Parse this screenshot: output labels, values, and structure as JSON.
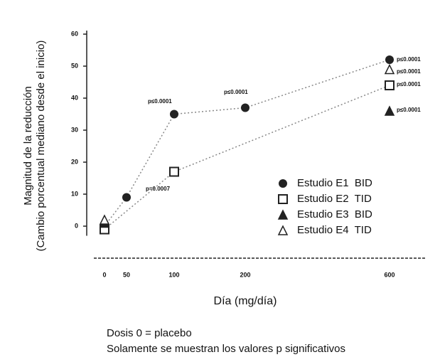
{
  "chart_data": {
    "type": "line",
    "y_label": [
      "Magnitud de la reducción",
      "(Cambio porcentual mediano desde el inicio)"
    ],
    "x_label": "Día (mg/día)",
    "categories": [
      "0",
      "50",
      "100",
      "200",
      "600"
    ],
    "ylim": [
      -10,
      60
    ],
    "yticks": [
      0,
      10,
      20,
      30,
      40,
      50,
      60
    ],
    "series": [
      {
        "name": "Estudio E1  BID",
        "marker": "circle",
        "color": "#222222",
        "values": [
          0,
          9,
          35,
          37,
          52
        ]
      },
      {
        "name": "Estudio E2  TID",
        "marker": "open-square",
        "color": "#222222",
        "values": [
          -1,
          null,
          17,
          null,
          44
        ]
      },
      {
        "name": "Estudio E3  BID",
        "marker": "triangle",
        "color": "#222222",
        "values": [
          1,
          null,
          null,
          null,
          36
        ]
      },
      {
        "name": "Estudio E4  TID",
        "marker": "open-triangle",
        "color": "#222222",
        "values": [
          2,
          null,
          null,
          null,
          49
        ]
      }
    ],
    "annotations": [
      "p≤0.0001",
      "p≤0.0001",
      "p=0.0007",
      "p≤0.0001",
      "p≤0.0001",
      "p≤0.0001",
      "p≤0.0001"
    ],
    "footnotes": [
      "Dosis 0 = placebo",
      "Solamente se muestran los valores p significativos"
    ]
  }
}
